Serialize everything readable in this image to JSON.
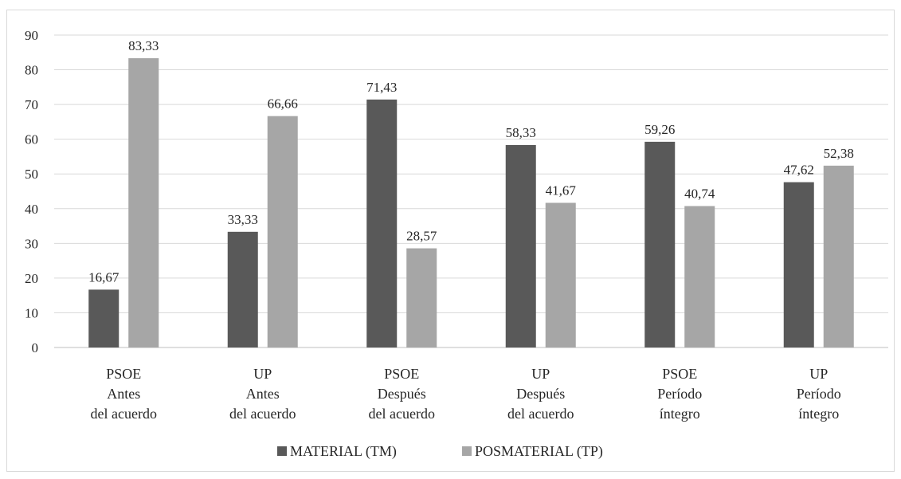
{
  "chart_data": {
    "type": "bar",
    "title": "",
    "xlabel": "",
    "ylabel": "",
    "ylim": [
      0,
      90
    ],
    "yticks": [
      "0",
      "10",
      "20",
      "30",
      "40",
      "50",
      "60",
      "70",
      "80",
      "90"
    ],
    "grid": true,
    "legend_position": "bottom",
    "categories": [
      [
        "PSOE",
        "Antes",
        "del acuerdo"
      ],
      [
        "UP",
        "Antes",
        "del acuerdo"
      ],
      [
        "PSOE",
        "Después",
        "del acuerdo"
      ],
      [
        "UP",
        "Después",
        "del acuerdo"
      ],
      [
        "PSOE",
        "Período",
        "íntegro"
      ],
      [
        "UP",
        "Período",
        "íntegro"
      ]
    ],
    "series": [
      {
        "name": "MATERIAL (TM)",
        "color": "#595959",
        "values": [
          16.67,
          33.33,
          71.43,
          58.33,
          59.26,
          47.62
        ],
        "labels": [
          "16,67",
          "33,33",
          "71,43",
          "58,33",
          "59,26",
          "47,62"
        ]
      },
      {
        "name": "POSMATERIAL (TP)",
        "color": "#a6a6a6",
        "values": [
          83.33,
          66.66,
          28.57,
          41.67,
          40.74,
          52.38
        ],
        "labels": [
          "83,33",
          "66,66",
          "28,57",
          "41,67",
          "40,74",
          "52,38"
        ]
      }
    ]
  }
}
